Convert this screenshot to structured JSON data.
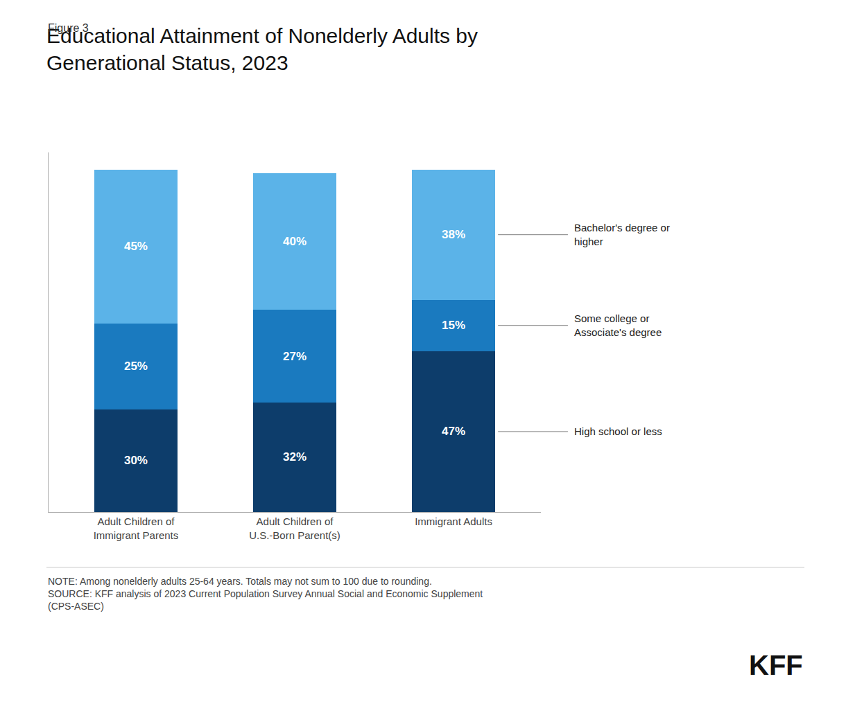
{
  "chart_data": {
    "type": "bar",
    "title": "Educational Attainment of Nonelderly Adults by\nGenerational Status, 2023",
    "categories": [
      "Adult Children of\nImmigrant Parents",
      "Adult Children of\nU.S.-Born Parent(s)",
      "Immigrant Adults"
    ],
    "series": [
      {
        "name": "High school or less",
        "color": "#0d3d6b",
        "values": [
          30,
          32,
          47
        ],
        "value_labels": [
          "30%",
          "32%",
          "47%"
        ]
      },
      {
        "name": "Some college or\nAssociate's degree",
        "color": "#1a7abf",
        "values": [
          25,
          27,
          15
        ],
        "value_labels": [
          "25%",
          "27%",
          "15%"
        ]
      },
      {
        "name": "Bachelor's degree or\nhigher",
        "color": "#5bb3e8",
        "values": [
          45,
          40,
          38
        ],
        "value_labels": [
          "45%",
          "40%",
          "38%"
        ]
      }
    ],
    "stacked": true,
    "data_labels": true,
    "ylim": [
      0,
      105
    ],
    "yticks": [],
    "grid": false,
    "tick_labels": "x",
    "annotations": [
      "Figure 3",
      "NOTE: Among nonelderly adults 25-64 years. Totals may not sum to 100 due to rounding.\nSOURCE: KFF analysis of 2023 Current Population Survey Annual Social and Economic Supplement\n(CPS-ASEC)",
      "KFF"
    ]
  }
}
